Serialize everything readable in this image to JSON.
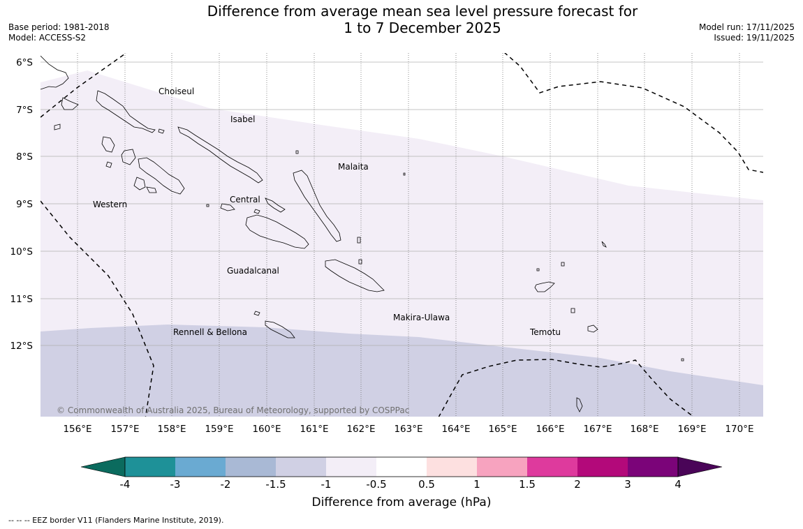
{
  "title_line1": "Difference from average mean sea level pressure forecast for",
  "title_line2": "1 to 7 December 2025",
  "meta_left": {
    "base_period": "Base period: 1981-2018",
    "model": "Model: ACCESS-S2"
  },
  "meta_right": {
    "model_run": "Model run: 17/11/2025",
    "issued": "Issued: 19/11/2025"
  },
  "copyright": "© Commonwealth of Australia 2025, Bureau of Meteorology, supported by COSPPac",
  "map": {
    "latitude_labels": [
      "6°S",
      "7°S",
      "8°S",
      "9°S",
      "10°S",
      "11°S",
      "12°S"
    ],
    "longitude_labels": [
      "156°E",
      "157°E",
      "158°E",
      "159°E",
      "160°E",
      "161°E",
      "162°E",
      "163°E",
      "164°E",
      "165°E",
      "166°E",
      "167°E",
      "168°E",
      "169°E",
      "170°E"
    ],
    "provinces": [
      "Choiseul",
      "Isabel",
      "Malaita",
      "Western",
      "Central",
      "Guadalcanal",
      "Makira-Ulawa",
      "Rennell & Bellona",
      "Temotu"
    ]
  },
  "colorbar": {
    "title": "Difference from average (hPa)",
    "tick_labels": [
      "-4",
      "-3",
      "-2",
      "-1.5",
      "-1",
      "-0.5",
      "0.5",
      "1",
      "1.5",
      "2",
      "3",
      "4"
    ],
    "colors": {
      "under": "#0b6b5e",
      "bins": [
        "#1e9198",
        "#6aaad2",
        "#a9b9d5",
        "#d0d0e4",
        "#f3eef7",
        "#ffffff",
        "#fde0e0",
        "#f7a3bf",
        "#de3a9d",
        "#b3097a",
        "#7b0479"
      ],
      "over": "#4a0558"
    }
  },
  "legend_note": "--  --  -- EEZ border V11 (Flanders Marine Institute, 2019)."
}
